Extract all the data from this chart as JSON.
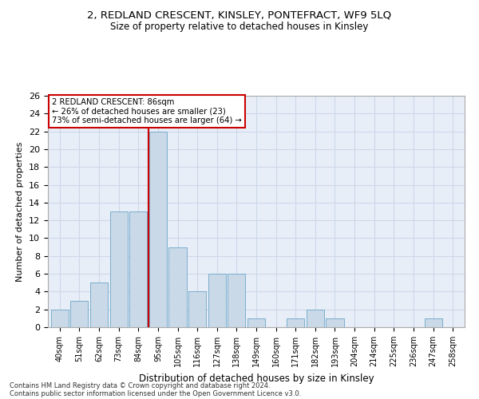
{
  "title": "2, REDLAND CRESCENT, KINSLEY, PONTEFRACT, WF9 5LQ",
  "subtitle": "Size of property relative to detached houses in Kinsley",
  "xlabel": "Distribution of detached houses by size in Kinsley",
  "ylabel": "Number of detached properties",
  "bar_labels": [
    "40sqm",
    "51sqm",
    "62sqm",
    "73sqm",
    "84sqm",
    "95sqm",
    "105sqm",
    "116sqm",
    "127sqm",
    "138sqm",
    "149sqm",
    "160sqm",
    "171sqm",
    "182sqm",
    "193sqm",
    "204sqm",
    "214sqm",
    "225sqm",
    "236sqm",
    "247sqm",
    "258sqm"
  ],
  "bar_values": [
    2,
    3,
    5,
    13,
    13,
    22,
    9,
    4,
    6,
    6,
    1,
    0,
    1,
    2,
    1,
    0,
    0,
    0,
    0,
    1,
    0
  ],
  "bar_color": "#c9d9e8",
  "bar_edgecolor": "#7aaecc",
  "grid_color": "#ccd8e8",
  "background_color": "#e8eef8",
  "property_line_x": 4.5,
  "annotation_text": "2 REDLAND CRESCENT: 86sqm\n← 26% of detached houses are smaller (23)\n73% of semi-detached houses are larger (64) →",
  "annotation_box_color": "#ffffff",
  "annotation_box_edgecolor": "#cc0000",
  "line_color": "#cc0000",
  "ylim": [
    0,
    26
  ],
  "yticks": [
    0,
    2,
    4,
    6,
    8,
    10,
    12,
    14,
    16,
    18,
    20,
    22,
    24,
    26
  ],
  "footnote1": "Contains HM Land Registry data © Crown copyright and database right 2024.",
  "footnote2": "Contains public sector information licensed under the Open Government Licence v3.0."
}
